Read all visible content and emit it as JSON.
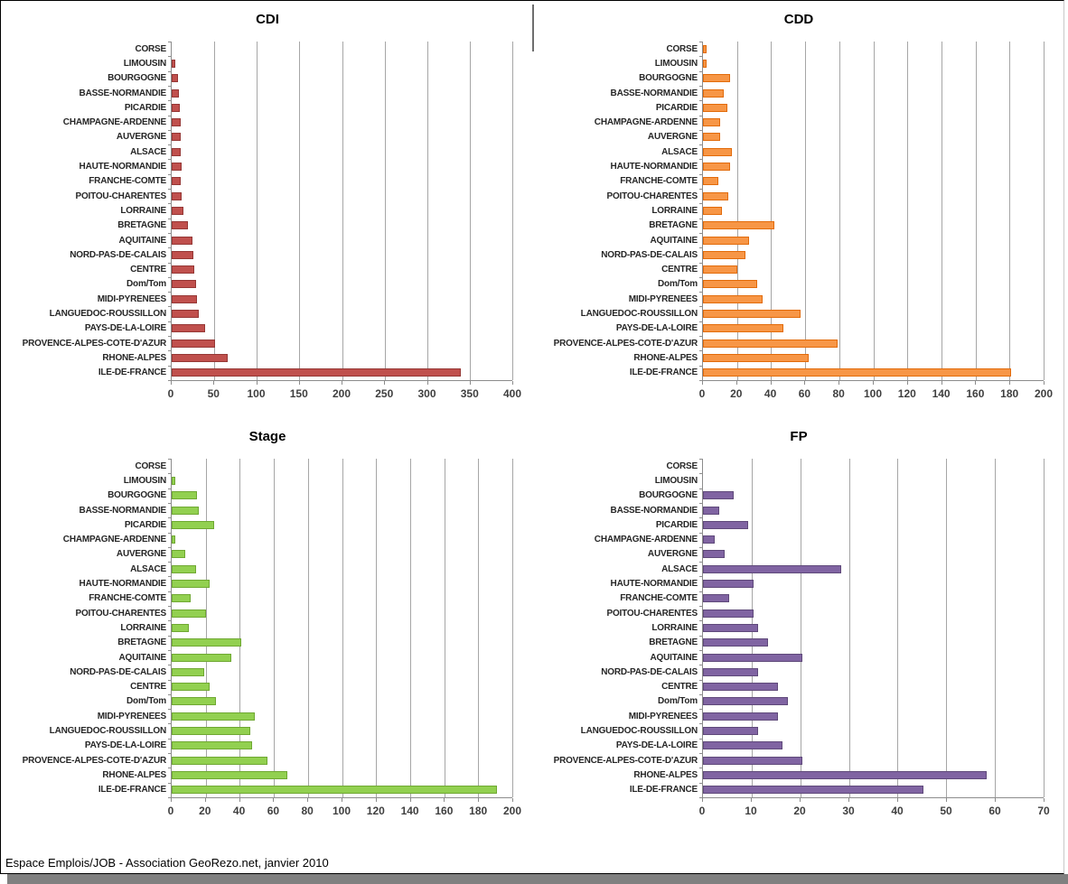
{
  "page": {
    "caption": "Espace Emplois/JOB - Association GeoRezo.net, janvier 2010"
  },
  "chart_data": [
    {
      "type": "bar",
      "orientation": "horizontal",
      "title": "CDI",
      "xlabel": "",
      "ylabel": "",
      "xlim": [
        0,
        400
      ],
      "xticks": [
        0,
        50,
        100,
        150,
        200,
        250,
        300,
        350,
        400
      ],
      "grid": true,
      "legend": "none",
      "bar_color": "#C0504D",
      "bar_border_color": "#953735",
      "categories": [
        "CORSE",
        "LIMOUSIN",
        "BOURGOGNE",
        "BASSE-NORMANDIE",
        "PICARDIE",
        "CHAMPAGNE-ARDENNE",
        "AUVERGNE",
        "ALSACE",
        "HAUTE-NORMANDIE",
        "FRANCHE-COMTE",
        "POITOU-CHARENTES",
        "LORRAINE",
        "BRETAGNE",
        "AQUITAINE",
        "NORD-PAS-DE-CALAIS",
        "CENTRE",
        "Dom/Tom",
        "MIDI-PYRENEES",
        "LANGUEDOC-ROUSSILLON",
        "PAYS-DE-LA-LOIRE",
        "PROVENCE-ALPES-COTE-D'AZUR",
        "RHONE-ALPES",
        "ILE-DE-FRANCE"
      ],
      "values": [
        0,
        2,
        5,
        6,
        7,
        9,
        9,
        8,
        10,
        9,
        10,
        12,
        17,
        22,
        23,
        24,
        27,
        28,
        30,
        37,
        49,
        64,
        337
      ]
    },
    {
      "type": "bar",
      "orientation": "horizontal",
      "title": "CDD",
      "xlabel": "",
      "ylabel": "",
      "xlim": [
        0,
        200
      ],
      "xticks": [
        0,
        20,
        40,
        60,
        80,
        100,
        120,
        140,
        160,
        180,
        200
      ],
      "grid": true,
      "legend": "none",
      "bar_color": "#F79646",
      "bar_border_color": "#E26B0A",
      "categories": [
        "CORSE",
        "LIMOUSIN",
        "BOURGOGNE",
        "BASSE-NORMANDIE",
        "PICARDIE",
        "CHAMPAGNE-ARDENNE",
        "AUVERGNE",
        "ALSACE",
        "HAUTE-NORMANDIE",
        "FRANCHE-COMTE",
        "POITOU-CHARENTES",
        "LORRAINE",
        "BRETAGNE",
        "AQUITAINE",
        "NORD-PAS-DE-CALAIS",
        "CENTRE",
        "Dom/Tom",
        "MIDI-PYRENEES",
        "LANGUEDOC-ROUSSILLON",
        "PAYS-DE-LA-LOIRE",
        "PROVENCE-ALPES-COTE-D'AZUR",
        "RHONE-ALPES",
        "ILE-DE-FRANCE"
      ],
      "values": [
        1,
        1,
        15,
        11,
        13,
        9,
        9,
        16,
        15,
        8,
        14,
        10,
        41,
        26,
        24,
        19,
        31,
        34,
        56,
        46,
        78,
        61,
        180
      ]
    },
    {
      "type": "bar",
      "orientation": "horizontal",
      "title": "Stage",
      "xlabel": "",
      "ylabel": "",
      "xlim": [
        0,
        200
      ],
      "xticks": [
        0,
        20,
        40,
        60,
        80,
        100,
        120,
        140,
        160,
        180,
        200
      ],
      "grid": true,
      "legend": "none",
      "bar_color": "#92D050",
      "bar_border_color": "#6FA832",
      "categories": [
        "CORSE",
        "LIMOUSIN",
        "BOURGOGNE",
        "BASSE-NORMANDIE",
        "PICARDIE",
        "CHAMPAGNE-ARDENNE",
        "AUVERGNE",
        "ALSACE",
        "HAUTE-NORMANDIE",
        "FRANCHE-COMTE",
        "POITOU-CHARENTES",
        "LORRAINE",
        "BRETAGNE",
        "AQUITAINE",
        "NORD-PAS-DE-CALAIS",
        "CENTRE",
        "Dom/Tom",
        "MIDI-PYRENEES",
        "LANGUEDOC-ROUSSILLON",
        "PAYS-DE-LA-LOIRE",
        "PROVENCE-ALPES-COTE-D'AZUR",
        "RHONE-ALPES",
        "ILE-DE-FRANCE"
      ],
      "values": [
        0,
        1,
        14,
        15,
        24,
        1,
        7,
        13,
        21,
        10,
        19,
        9,
        40,
        34,
        18,
        21,
        25,
        48,
        45,
        46,
        55,
        67,
        190
      ]
    },
    {
      "type": "bar",
      "orientation": "horizontal",
      "title": "FP",
      "xlabel": "",
      "ylabel": "",
      "xlim": [
        0,
        70
      ],
      "xticks": [
        0,
        10,
        20,
        30,
        40,
        50,
        60,
        70
      ],
      "grid": true,
      "legend": "none",
      "bar_color": "#8064A2",
      "bar_border_color": "#5F497A",
      "categories": [
        "CORSE",
        "LIMOUSIN",
        "BOURGOGNE",
        "BASSE-NORMANDIE",
        "PICARDIE",
        "CHAMPAGNE-ARDENNE",
        "AUVERGNE",
        "ALSACE",
        "HAUTE-NORMANDIE",
        "FRANCHE-COMTE",
        "POITOU-CHARENTES",
        "LORRAINE",
        "BRETAGNE",
        "AQUITAINE",
        "NORD-PAS-DE-CALAIS",
        "CENTRE",
        "Dom/Tom",
        "MIDI-PYRENEES",
        "LANGUEDOC-ROUSSILLON",
        "PAYS-DE-LA-LOIRE",
        "PROVENCE-ALPES-COTE-D'AZUR",
        "RHONE-ALPES",
        "ILE-DE-FRANCE"
      ],
      "values": [
        0,
        0,
        6,
        3,
        9,
        2,
        4,
        28,
        10,
        5,
        10,
        11,
        13,
        20,
        11,
        15,
        17,
        15,
        11,
        16,
        20,
        58,
        45
      ]
    }
  ]
}
